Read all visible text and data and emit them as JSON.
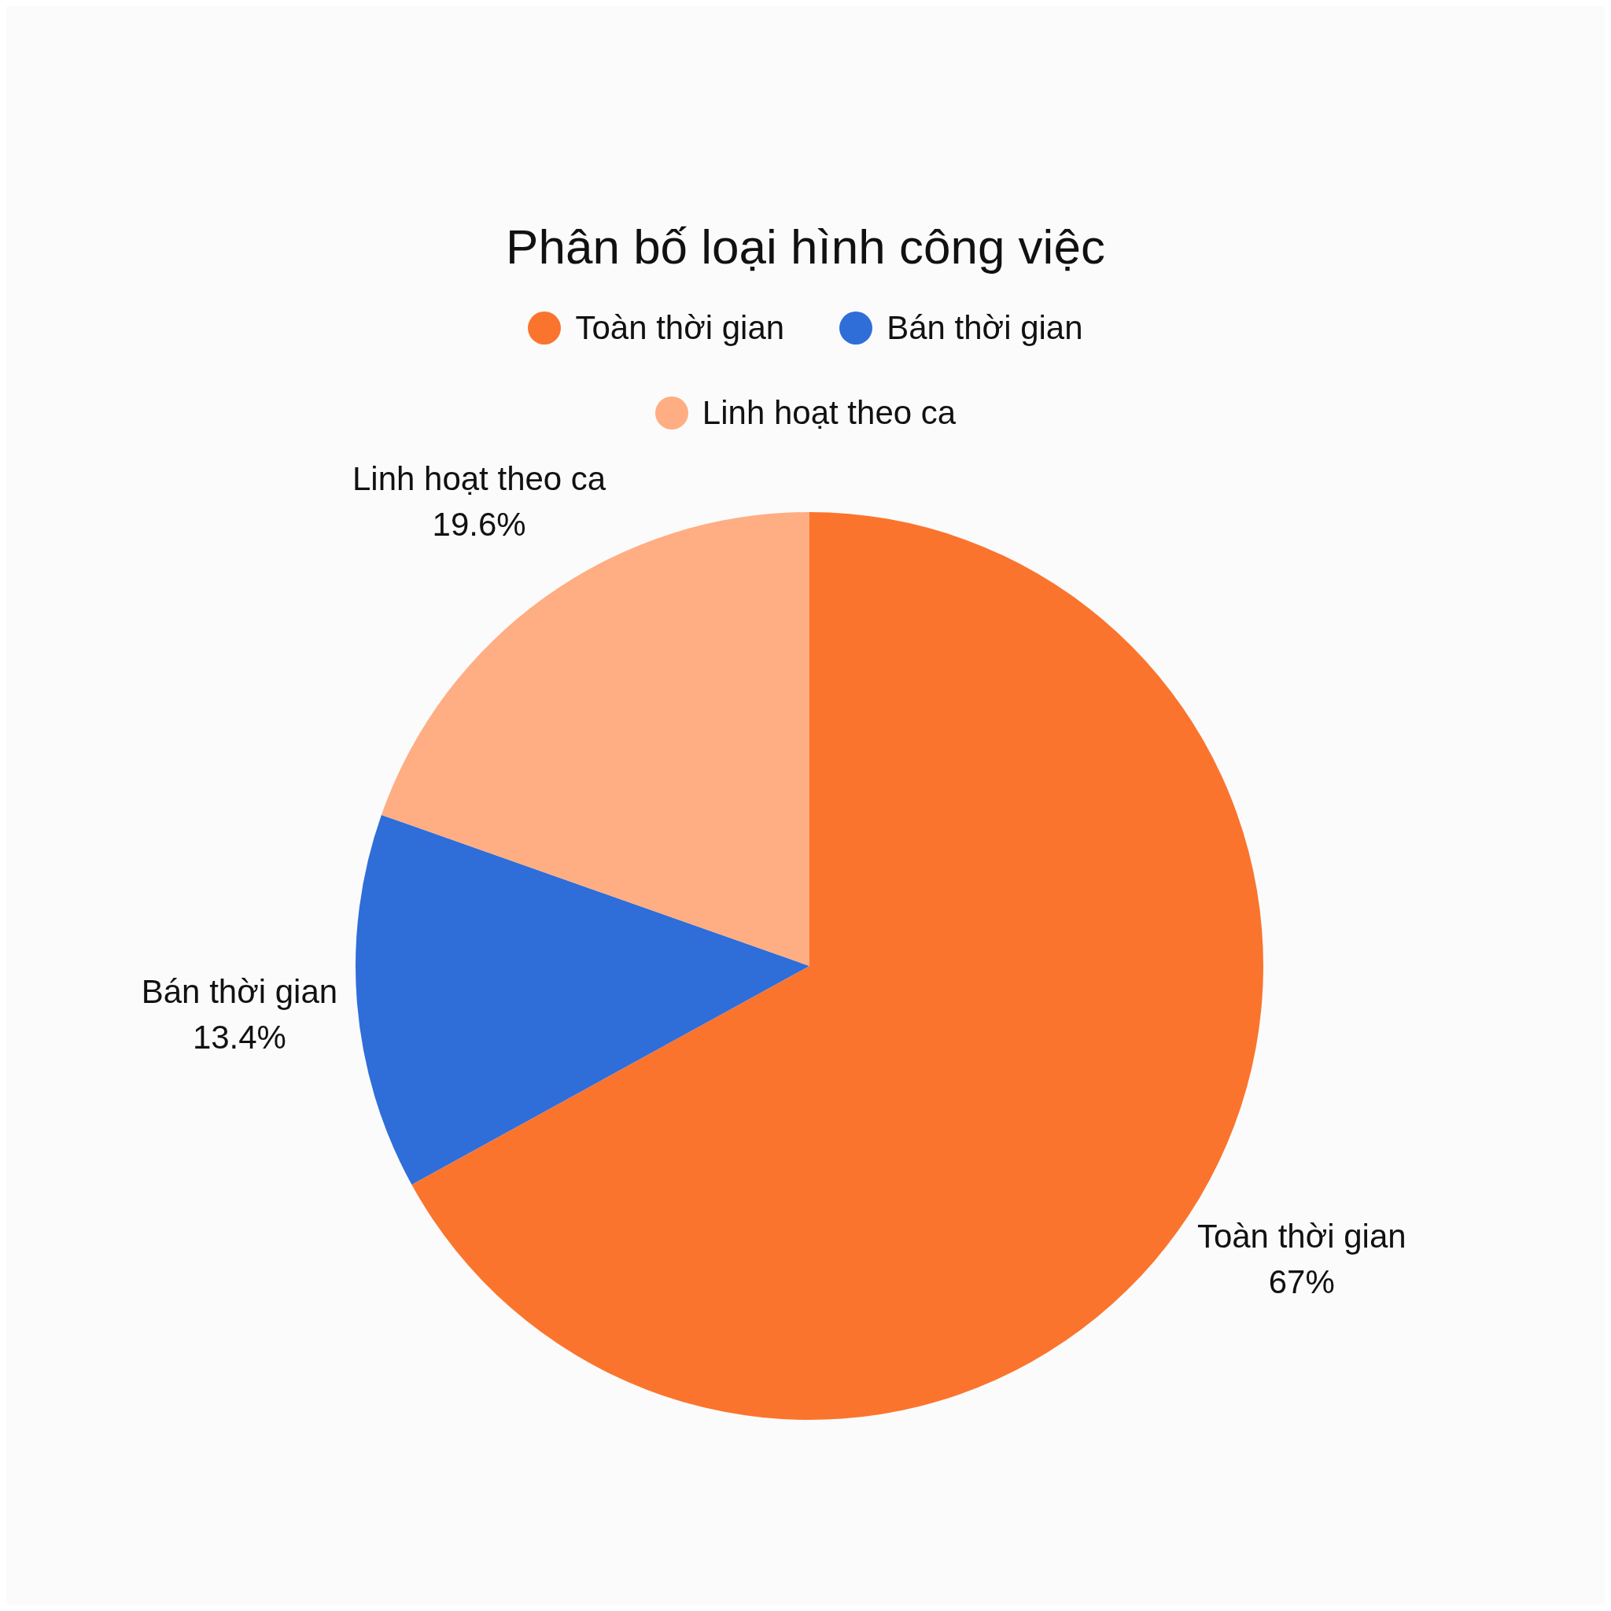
{
  "chart_data": {
    "type": "pie",
    "title": "Phân bố loại hình công việc",
    "categories": [
      "Toàn thời gian",
      "Bán thời gian",
      "Linh hoạt theo ca"
    ],
    "values": [
      67,
      13.4,
      19.6
    ],
    "colors": [
      "#fb742d",
      "#2f6dd9",
      "#ffad82"
    ],
    "value_labels": [
      "67%",
      "13.4%",
      "19.6%"
    ],
    "legend": "top"
  }
}
